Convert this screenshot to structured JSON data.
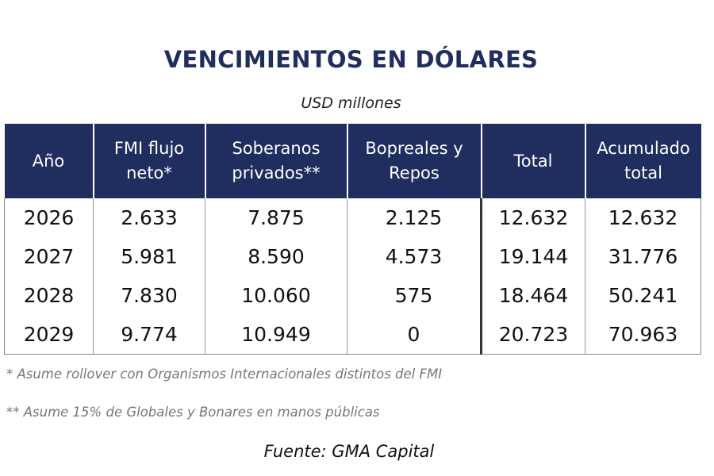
{
  "header": {
    "title": "VENCIMIENTOS EN DÓLARES",
    "subtitle": "USD millones"
  },
  "table": {
    "columns": [
      "Año",
      "FMI flujo\nneto*",
      "Soberanos\nprivados**",
      "Bopreales y\nRepos",
      "Total",
      "Acumulado\ntotal"
    ],
    "rows": [
      [
        "2026",
        "2.633",
        "7.875",
        "2.125",
        "12.632",
        "12.632"
      ],
      [
        "2027",
        "5.981",
        "8.590",
        "4.573",
        "19.144",
        "31.776"
      ],
      [
        "2028",
        "7.830",
        "10.060",
        "575",
        "18.464",
        "50.241"
      ],
      [
        "2029",
        "9.774",
        "10.949",
        "0",
        "20.723",
        "70.963"
      ]
    ]
  },
  "footnotes": [
    "* Asume rollover con Organismos Internacionales distintos del FMI",
    "** Asume 15% de Globales y Bonares en manos públicas"
  ],
  "source": "Fuente: GMA Capital"
}
